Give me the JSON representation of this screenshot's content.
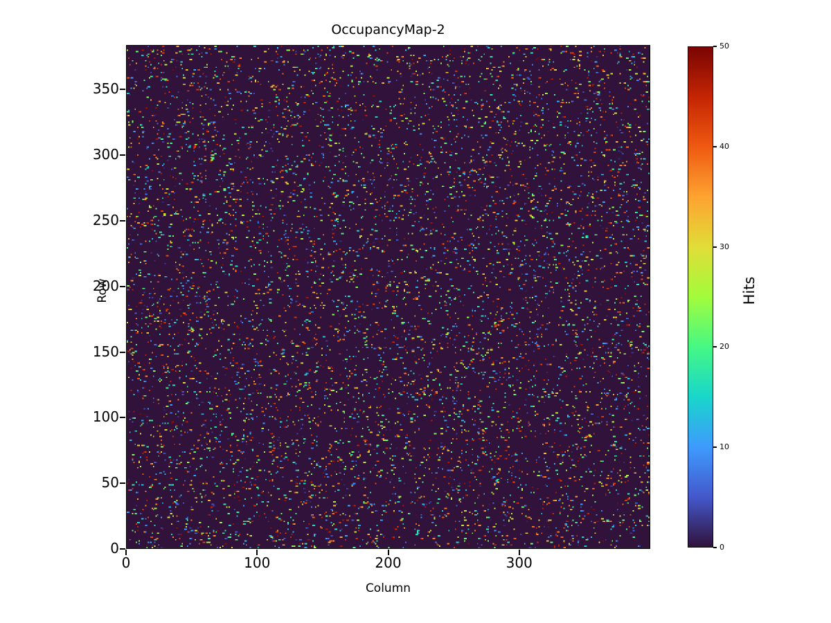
{
  "chart_data": {
    "type": "heatmap",
    "title": "OccupancyMap-2",
    "xlabel": "Column",
    "ylabel": "Row",
    "colorbar_label": "Hits",
    "x_range": [
      0,
      400
    ],
    "y_range": [
      0,
      384
    ],
    "x_ticks": [
      0,
      100,
      200,
      300
    ],
    "y_ticks": [
      0,
      50,
      100,
      150,
      200,
      250,
      300,
      350
    ],
    "colorbar_ticks": [
      0,
      10,
      20,
      30,
      40,
      50
    ],
    "vmin": 0,
    "vmax": 50,
    "grid": {
      "n_cols": 400,
      "n_rows": 384
    },
    "background_value": 0,
    "background_color": "#30123b",
    "colormap": "turbo",
    "colormap_stops": [
      {
        "t": 0.0,
        "c": "#30123b"
      },
      {
        "t": 0.1,
        "c": "#4458cb"
      },
      {
        "t": 0.2,
        "c": "#3e9bfe"
      },
      {
        "t": 0.3,
        "c": "#18d6cb"
      },
      {
        "t": 0.4,
        "c": "#46f884"
      },
      {
        "t": 0.5,
        "c": "#a2fc3c"
      },
      {
        "t": 0.6,
        "c": "#e1dd37"
      },
      {
        "t": 0.7,
        "c": "#fea331"
      },
      {
        "t": 0.8,
        "c": "#ef5a11"
      },
      {
        "t": 0.9,
        "c": "#c42503"
      },
      {
        "t": 1.0,
        "c": "#7a0403"
      }
    ],
    "sparse_random": {
      "seed": 20231107,
      "occupancy_fraction": 0.048,
      "value_min": 1,
      "value_max": 50,
      "cluster_prob": 0.35
    },
    "legend": "none",
    "grid_lines": false
  }
}
